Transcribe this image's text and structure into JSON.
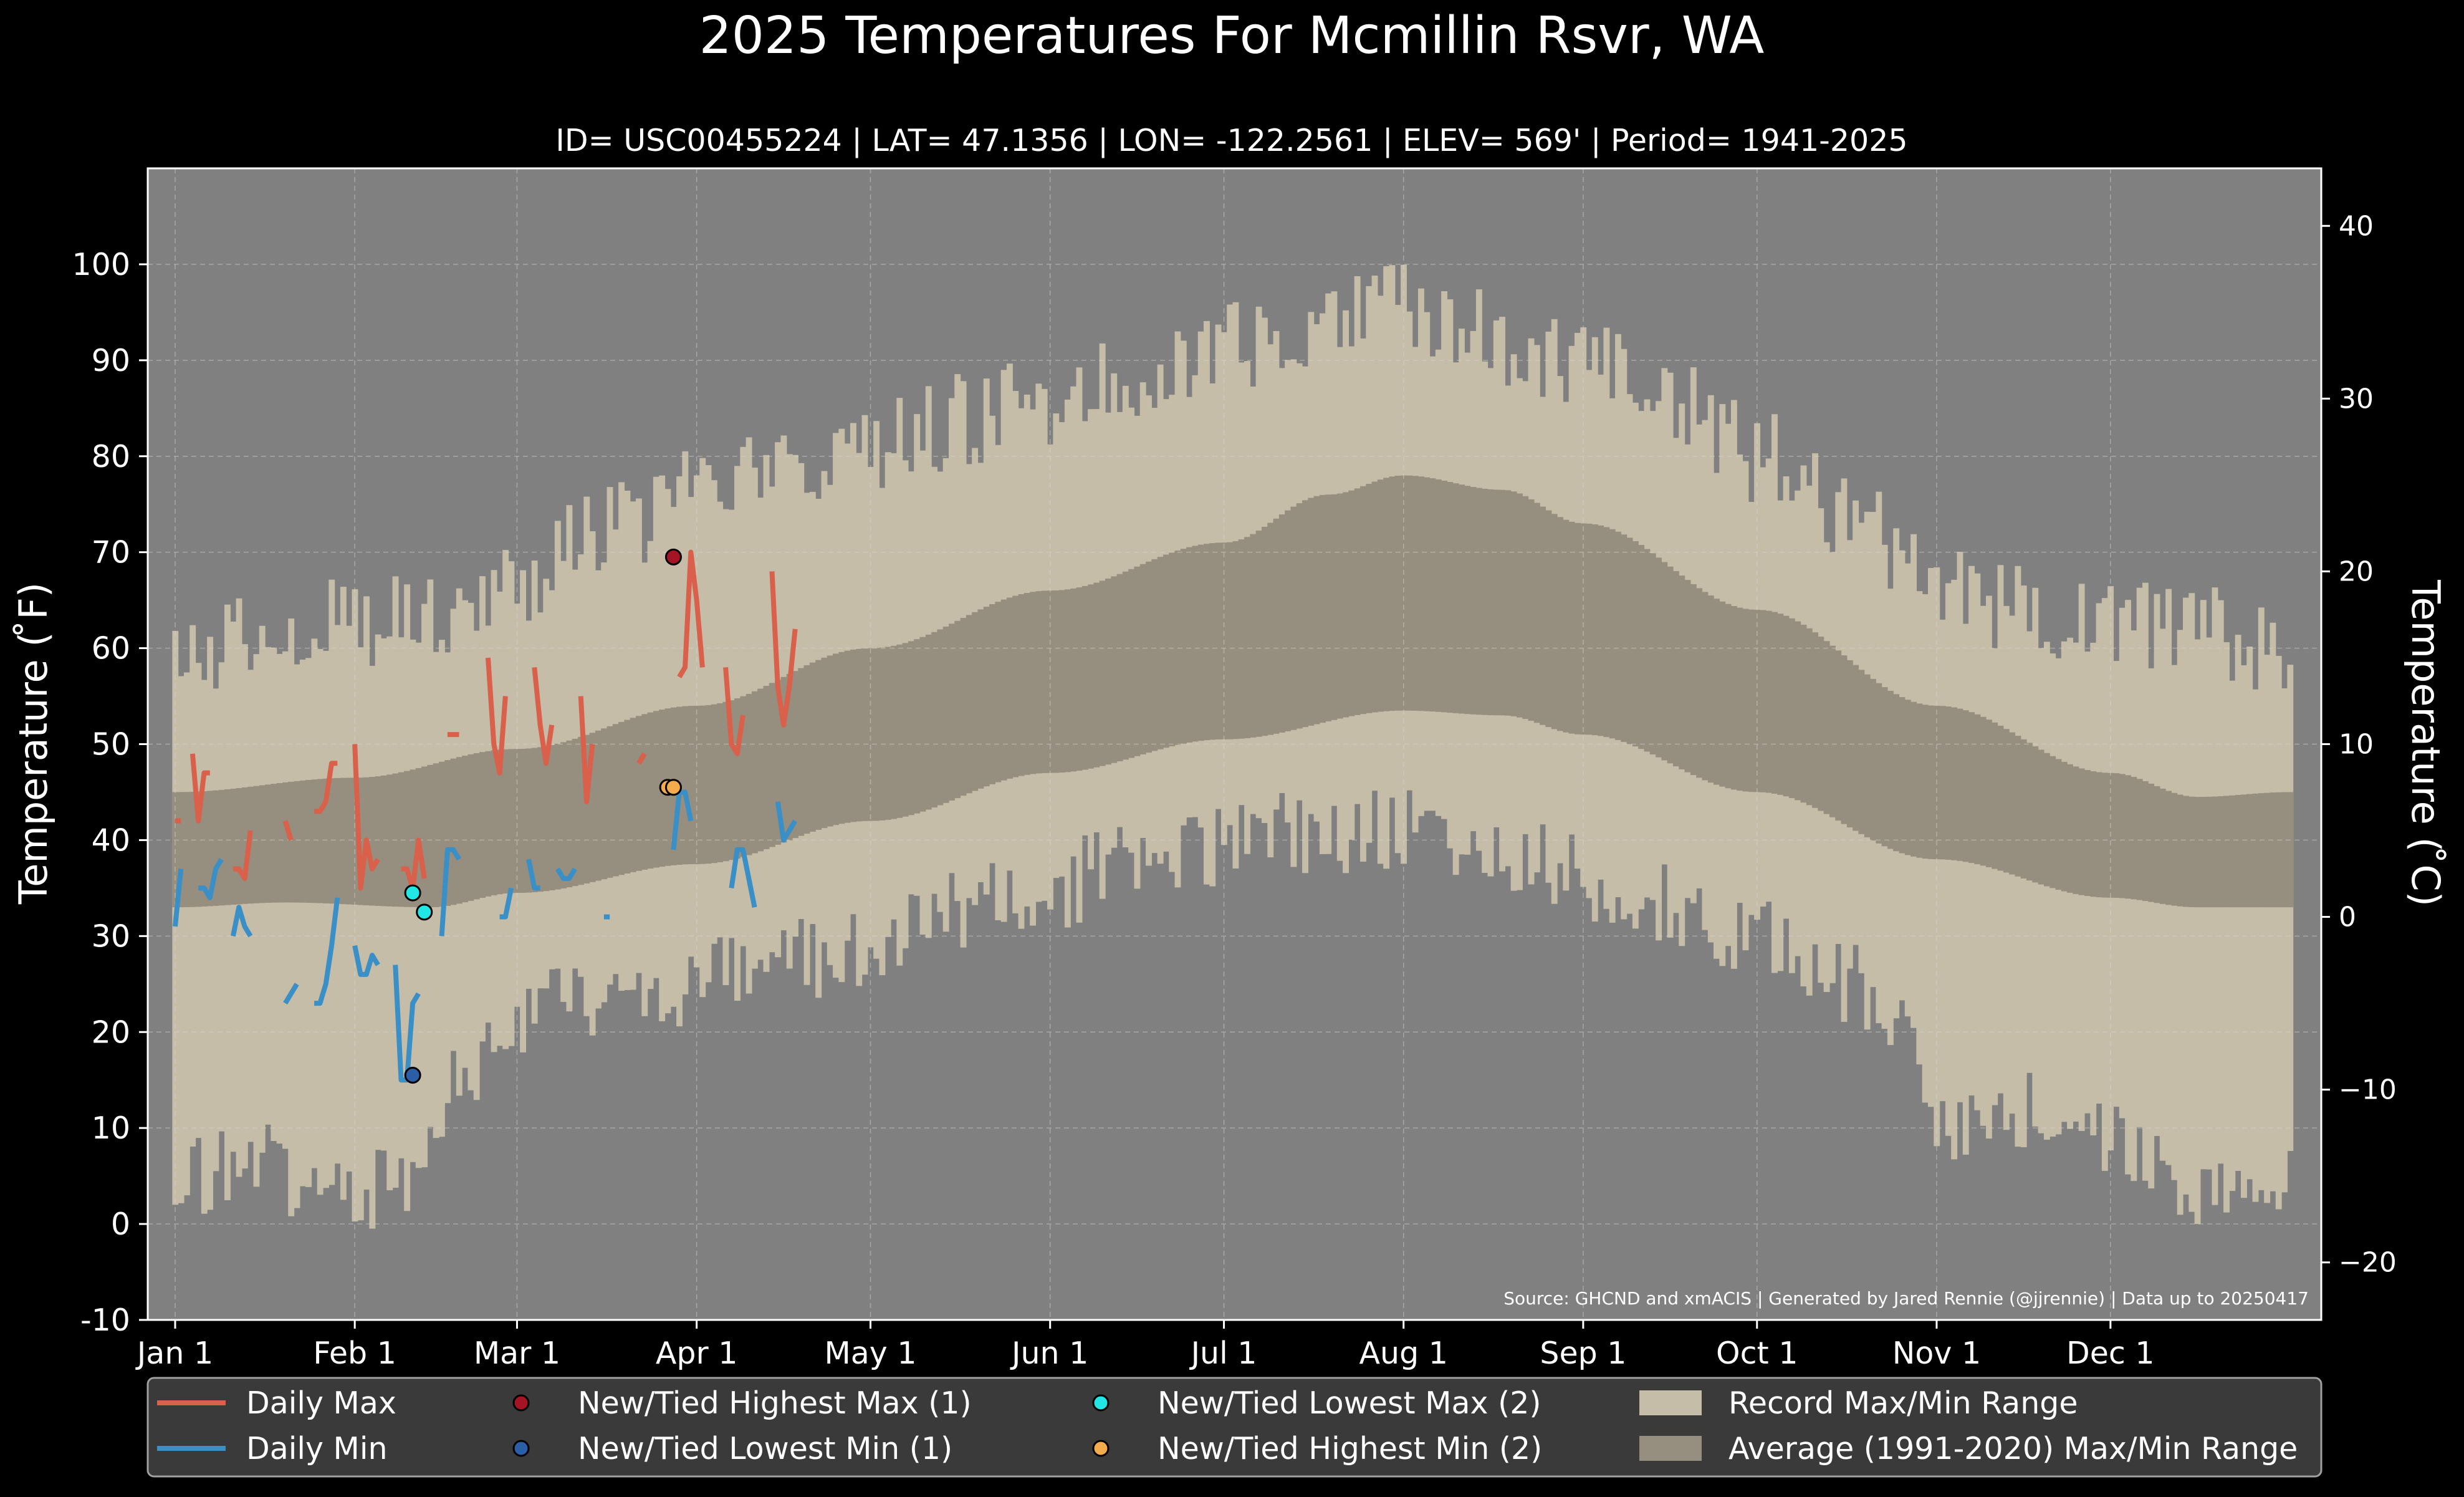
{
  "chart_data": {
    "type": "climate-band-line",
    "title": "2025 Temperatures For Mcmillin Rsvr, WA",
    "subtitle": "ID= USC00455224 | LAT= 47.1356 | LON= -122.2561 | ELEV= 569' | Period= 1941-2025",
    "ylabel": "Temperature ($^\\circ$F)",
    "ylabel_display": "Temperature ( ̊F)",
    "ylabel_right": "Temperature ( ̊C)",
    "source": "Source: GHCND and xmACIS | Generated by Jared Rennie (@jjrennie) | Data up to 20250417",
    "ylim": [
      -10,
      110
    ],
    "ylim_right": [
      -23.33,
      43.33
    ],
    "y_ticks": [
      -10,
      0,
      10,
      20,
      30,
      40,
      50,
      60,
      70,
      80,
      90,
      100
    ],
    "y_ticks_right": [
      -20,
      -10,
      0,
      10,
      20,
      30,
      40
    ],
    "x_ticks": [
      {
        "label": "Jan 1",
        "day": 1
      },
      {
        "label": "Feb 1",
        "day": 32
      },
      {
        "label": "Mar 1",
        "day": 60
      },
      {
        "label": "Apr 1",
        "day": 91
      },
      {
        "label": "May 1",
        "day": 121
      },
      {
        "label": "Jun 1",
        "day": 152
      },
      {
        "label": "Jul 1",
        "day": 182
      },
      {
        "label": "Aug 1",
        "day": 213
      },
      {
        "label": "Sep 1",
        "day": 244
      },
      {
        "label": "Oct 1",
        "day": 274
      },
      {
        "label": "Nov 1",
        "day": 305
      },
      {
        "label": "Dec 1",
        "day": 335
      }
    ],
    "xlim_days": [
      1,
      366
    ],
    "grid": true,
    "legend_position": "bottom",
    "colors": {
      "background": "#000000",
      "plot_bg": "#808080",
      "record_band": "#c5bda7",
      "normal_band": "#968e7e",
      "daily_max": "#d9604a",
      "daily_min": "#3b8fc7",
      "new_high_max": "#a41424",
      "new_low_min": "#2a5ea7",
      "new_low_max": "#22e5e6",
      "new_high_min": "#f3ab4c"
    },
    "record_max_anchors": [
      [
        1,
        58
      ],
      [
        15,
        62
      ],
      [
        32,
        63
      ],
      [
        45,
        64
      ],
      [
        60,
        67
      ],
      [
        75,
        72
      ],
      [
        91,
        76
      ],
      [
        105,
        78
      ],
      [
        121,
        81
      ],
      [
        140,
        84
      ],
      [
        152,
        86
      ],
      [
        166,
        89
      ],
      [
        182,
        91
      ],
      [
        196,
        93
      ],
      [
        206,
        95
      ],
      [
        213,
        96
      ],
      [
        220,
        94
      ],
      [
        232,
        92
      ],
      [
        244,
        89
      ],
      [
        258,
        86
      ],
      [
        274,
        80
      ],
      [
        289,
        74
      ],
      [
        305,
        67
      ],
      [
        320,
        64
      ],
      [
        335,
        63
      ],
      [
        350,
        62
      ],
      [
        366,
        60
      ]
    ],
    "record_min_anchors": [
      [
        1,
        5
      ],
      [
        15,
        6
      ],
      [
        30,
        3
      ],
      [
        40,
        5
      ],
      [
        47,
        13
      ],
      [
        58,
        20
      ],
      [
        70,
        24
      ],
      [
        91,
        25
      ],
      [
        105,
        27
      ],
      [
        121,
        29
      ],
      [
        140,
        33
      ],
      [
        152,
        35
      ],
      [
        166,
        38
      ],
      [
        182,
        39
      ],
      [
        196,
        41
      ],
      [
        213,
        41
      ],
      [
        228,
        39
      ],
      [
        244,
        36
      ],
      [
        258,
        33
      ],
      [
        274,
        30
      ],
      [
        289,
        25
      ],
      [
        300,
        20
      ],
      [
        305,
        10
      ],
      [
        320,
        12
      ],
      [
        335,
        8
      ],
      [
        350,
        4
      ],
      [
        366,
        4
      ]
    ],
    "normal_max_anchors": [
      [
        1,
        45
      ],
      [
        32,
        46.5
      ],
      [
        60,
        49.5
      ],
      [
        91,
        54
      ],
      [
        121,
        60
      ],
      [
        152,
        66
      ],
      [
        182,
        71
      ],
      [
        200,
        76
      ],
      [
        213,
        78
      ],
      [
        230,
        76.5
      ],
      [
        244,
        73
      ],
      [
        274,
        64
      ],
      [
        305,
        54
      ],
      [
        335,
        47
      ],
      [
        350,
        44.5
      ],
      [
        366,
        45
      ]
    ],
    "normal_min_anchors": [
      [
        1,
        33
      ],
      [
        20,
        33.5
      ],
      [
        45,
        33
      ],
      [
        60,
        34.5
      ],
      [
        91,
        37.5
      ],
      [
        121,
        42
      ],
      [
        152,
        47
      ],
      [
        182,
        50.5
      ],
      [
        213,
        53.5
      ],
      [
        230,
        53
      ],
      [
        244,
        51
      ],
      [
        274,
        45
      ],
      [
        305,
        38
      ],
      [
        335,
        34
      ],
      [
        350,
        33
      ],
      [
        366,
        33
      ]
    ],
    "daily_max": [
      42,
      42,
      null,
      49,
      42,
      47,
      47,
      null,
      null,
      null,
      37,
      37,
      36,
      41,
      null,
      null,
      null,
      null,
      null,
      42,
      40,
      null,
      null,
      null,
      43,
      43,
      44,
      48,
      48,
      null,
      null,
      50,
      35,
      40,
      37,
      38,
      null,
      null,
      null,
      37,
      37,
      35,
      40,
      36,
      null,
      null,
      null,
      51,
      51,
      51,
      null,
      49,
      null,
      null,
      59,
      50,
      47,
      55,
      null,
      62,
      null,
      null,
      58,
      52,
      48,
      52,
      null,
      null,
      null,
      null,
      55,
      44,
      50,
      null,
      null,
      null,
      null,
      null,
      null,
      null,
      48,
      49,
      null,
      null,
      null,
      null,
      null,
      57,
      58,
      70,
      65,
      58,
      null,
      null,
      null,
      58,
      50,
      49,
      53,
      null,
      null,
      null,
      null,
      68,
      56,
      52,
      56,
      62
    ],
    "daily_min": [
      31,
      37,
      null,
      null,
      35,
      35,
      34,
      37,
      38,
      null,
      30,
      33,
      31,
      30,
      null,
      null,
      null,
      null,
      null,
      23,
      24,
      25,
      null,
      null,
      23,
      23,
      25,
      29,
      34,
      null,
      null,
      29,
      26,
      26,
      28,
      27,
      null,
      null,
      27,
      15,
      15,
      23,
      24,
      null,
      null,
      null,
      30,
      39,
      39,
      38,
      null,
      38,
      null,
      null,
      38,
      null,
      32,
      32,
      35,
      null,
      null,
      38,
      35,
      35,
      null,
      null,
      37,
      36,
      36,
      37,
      null,
      null,
      null,
      null,
      32,
      32,
      null,
      null,
      null,
      null,
      null,
      null,
      null,
      null,
      null,
      null,
      39,
      45,
      45,
      42,
      null,
      null,
      null,
      null,
      null,
      null,
      35,
      39,
      39,
      36,
      33,
      null,
      null,
      null,
      44,
      40,
      41,
      42
    ],
    "record_points": [
      {
        "series": "New/Tied Highest Max",
        "day": 87,
        "value": 69.5
      },
      {
        "series": "New/Tied Lowest Min",
        "day": 42,
        "value": 15.5
      },
      {
        "series": "New/Tied Lowest Max",
        "day": 42,
        "value": 34.5
      },
      {
        "series": "New/Tied Lowest Max",
        "day": 44,
        "value": 32.5
      },
      {
        "series": "New/Tied Highest Min",
        "day": 86,
        "value": 45.5
      },
      {
        "series": "New/Tied Highest Min",
        "day": 87,
        "value": 45.5
      }
    ],
    "legend": [
      {
        "label": "Daily Max",
        "kind": "line",
        "color": "#d9604a"
      },
      {
        "label": "Daily Min",
        "kind": "line",
        "color": "#3b8fc7"
      },
      {
        "label": "New/Tied Highest Max (1)",
        "kind": "dot",
        "color": "#a41424"
      },
      {
        "label": "New/Tied Lowest Min (1)",
        "kind": "dot",
        "color": "#2a5ea7"
      },
      {
        "label": "New/Tied Lowest Max (2)",
        "kind": "dot",
        "color": "#22e5e6"
      },
      {
        "label": "New/Tied Highest Min (2)",
        "kind": "dot",
        "color": "#f3ab4c"
      },
      {
        "label": "Record Max/Min Range",
        "kind": "patch",
        "color": "#c5bda7"
      },
      {
        "label": "Average (1991-2020) Max/Min Range",
        "kind": "patch",
        "color": "#968e7e"
      }
    ]
  }
}
